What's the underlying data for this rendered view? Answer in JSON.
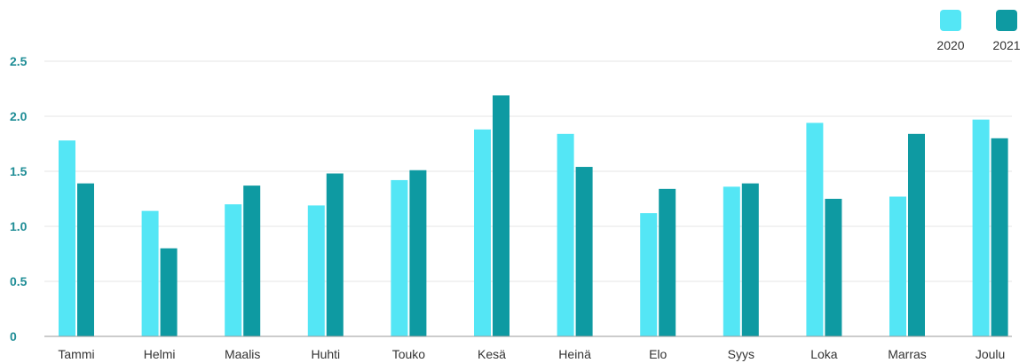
{
  "chart_data": {
    "type": "bar",
    "categories": [
      "Tammi",
      "Helmi",
      "Maalis",
      "Huhti",
      "Touko",
      "Kesä",
      "Heinä",
      "Elo",
      "Syys",
      "Loka",
      "Marras",
      "Joulu"
    ],
    "series": [
      {
        "name": "2020",
        "color": "#54e6f5",
        "values": [
          1.78,
          1.14,
          1.2,
          1.19,
          1.42,
          1.88,
          1.84,
          1.12,
          1.36,
          1.94,
          1.27,
          1.97
        ]
      },
      {
        "name": "2021",
        "color": "#0e9aa2",
        "values": [
          1.39,
          0.8,
          1.37,
          1.48,
          1.51,
          2.19,
          1.54,
          1.34,
          1.39,
          1.25,
          1.84,
          1.8
        ]
      }
    ],
    "y_ticks": [
      "0",
      "0.5",
      "1.0",
      "1.5",
      "2.0",
      "2.5"
    ],
    "ylim": [
      0,
      2.5
    ],
    "grid": true,
    "legend_position": "top-right",
    "title": "",
    "xlabel": "",
    "ylabel": ""
  }
}
